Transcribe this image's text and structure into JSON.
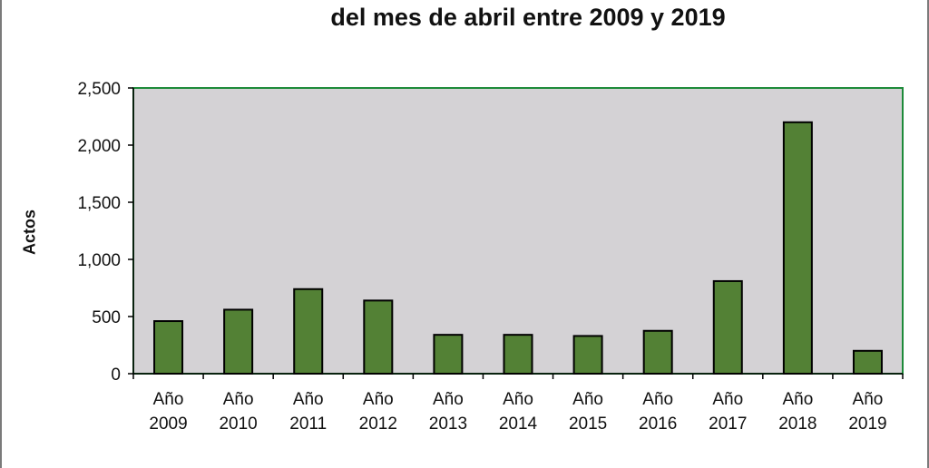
{
  "chart_data": {
    "type": "bar",
    "title": "del mes de abril entre 2009 y 2019",
    "xlabel": "",
    "ylabel": "Actos",
    "categories": [
      [
        "Año",
        "2009"
      ],
      [
        "Año",
        "2010"
      ],
      [
        "Año",
        "2011"
      ],
      [
        "Año",
        "2012"
      ],
      [
        "Año",
        "2013"
      ],
      [
        "Año",
        "2014"
      ],
      [
        "Año",
        "2015"
      ],
      [
        "Año",
        "2016"
      ],
      [
        "Año",
        "2017"
      ],
      [
        "Año",
        "2018"
      ],
      [
        "Año",
        "2019"
      ]
    ],
    "values": [
      460,
      560,
      740,
      640,
      340,
      340,
      330,
      375,
      810,
      2200,
      200
    ],
    "ylim": [
      0,
      2500
    ],
    "yticks": [
      0,
      500,
      1000,
      1500,
      2000,
      2500
    ],
    "ytick_labels": [
      "0",
      "500",
      "1,000",
      "1,500",
      "2,000",
      "2,500"
    ],
    "grid": false,
    "colors": {
      "bar": "#538135",
      "bar_edge": "#000000",
      "plot_bg": "#d4d2d5",
      "plot_border": "#1e8a3a"
    }
  }
}
